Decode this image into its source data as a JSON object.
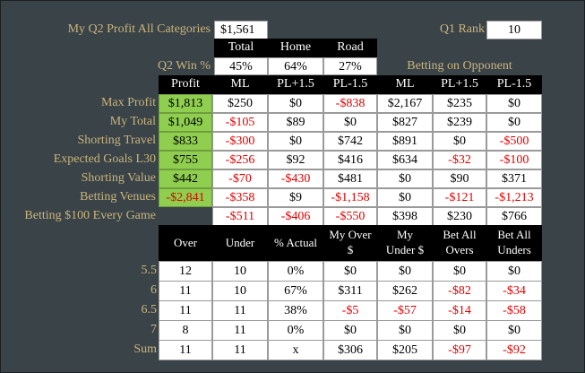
{
  "top": {
    "profit_label": "My Q2 Profit All Categories",
    "profit_value": "$1,561",
    "rank_label": "Q1 Rank",
    "rank_value": "10"
  },
  "win": {
    "headers": [
      "Total",
      "Home",
      "Road"
    ],
    "label": "Q2 Win %",
    "values": [
      "45%",
      "64%",
      "27%"
    ],
    "opponent_label": "Betting on Opponent"
  },
  "main": {
    "headers": [
      "Profit",
      "ML",
      "PL+1.5",
      "PL-1.5",
      "ML",
      "PL+1.5",
      "PL-1.5"
    ],
    "rows": [
      {
        "label": "Max Profit",
        "cells": [
          "$1,813",
          "$250",
          "$0",
          "-$838",
          "$2,167",
          "$235",
          "$0"
        ]
      },
      {
        "label": "My Total",
        "cells": [
          "$1,049",
          "-$105",
          "$89",
          "$0",
          "$827",
          "$239",
          "$0"
        ]
      },
      {
        "label": "Shorting Travel",
        "cells": [
          "$833",
          "-$300",
          "$0",
          "$742",
          "$891",
          "$0",
          "-$500"
        ]
      },
      {
        "label": "Expected Goals L30",
        "cells": [
          "$755",
          "-$256",
          "$92",
          "$416",
          "$634",
          "-$32",
          "-$100"
        ]
      },
      {
        "label": "Shorting Value",
        "cells": [
          "$442",
          "-$70",
          "-$430",
          "$481",
          "$0",
          "$90",
          "$371"
        ]
      },
      {
        "label": "Betting Venues",
        "cells": [
          "-$2,841",
          "-$358",
          "$9",
          "-$1,158",
          "$0",
          "-$121",
          "-$1,213"
        ]
      },
      {
        "label": "Betting $100 Every Game",
        "cells": [
          "",
          "-$511",
          "-$406",
          "-$550",
          "$398",
          "$230",
          "$766"
        ]
      }
    ]
  },
  "ou": {
    "headers": [
      {
        "l1": "Over",
        "l2": ""
      },
      {
        "l1": "Under",
        "l2": ""
      },
      {
        "l1": "% Actual",
        "l2": ""
      },
      {
        "l1": "My Over",
        "l2": "$"
      },
      {
        "l1": "My",
        "l2": "Under $"
      },
      {
        "l1": "Bet All",
        "l2": "Overs"
      },
      {
        "l1": "Bet All",
        "l2": "Unders"
      }
    ],
    "rows": [
      {
        "label": "5.5",
        "cells": [
          "12",
          "10",
          "0%",
          "$0",
          "$0",
          "$0",
          "$0"
        ]
      },
      {
        "label": "6",
        "cells": [
          "11",
          "10",
          "67%",
          "$311",
          "$262",
          "-$82",
          "-$34"
        ]
      },
      {
        "label": "6.5",
        "cells": [
          "11",
          "11",
          "38%",
          "-$5",
          "-$57",
          "-$14",
          "-$58"
        ]
      },
      {
        "label": "7",
        "cells": [
          "8",
          "11",
          "0%",
          "$0",
          "$0",
          "$0",
          "$0"
        ]
      },
      {
        "label": "Sum",
        "cells": [
          "11",
          "11",
          "x",
          "$306",
          "$205",
          "-$97",
          "-$92"
        ]
      }
    ]
  },
  "colors": {
    "background": "#3a4348",
    "label": "#c9b37a",
    "header": "#000000",
    "highlight": "#8fce4e",
    "negative": "#e00000"
  }
}
